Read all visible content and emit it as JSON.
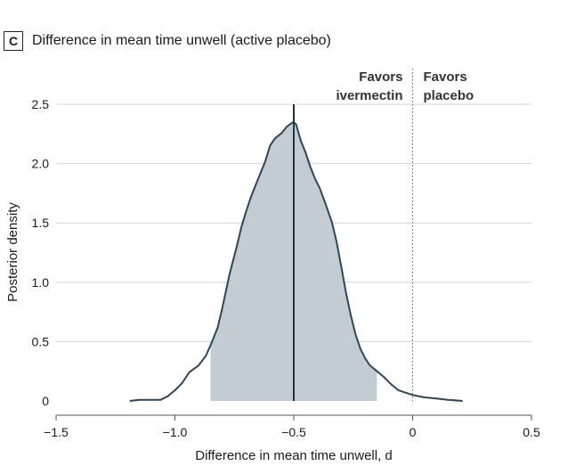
{
  "panel": {
    "letter": "C",
    "title": "Difference in mean time unwell (active placebo)"
  },
  "chart_data": {
    "type": "area",
    "xlabel": "Difference in mean time unwell, d",
    "ylabel": "Posterior density",
    "xlim": [
      -1.5,
      0.5
    ],
    "ylim": [
      0,
      2.5
    ],
    "x_ticks": [
      -1.5,
      -1.0,
      -0.5,
      0,
      0.5
    ],
    "x_tick_labels": [
      "−1.5",
      "−1.0",
      "−0.5",
      "0",
      "0.5"
    ],
    "y_ticks": [
      0,
      0.5,
      1.0,
      1.5,
      2.0,
      2.5
    ],
    "y_tick_labels": [
      "0",
      "0.5",
      "1.0",
      "1.5",
      "2.0",
      "2.5"
    ],
    "grid": "horizontal",
    "shaded_interval": [
      -0.85,
      -0.15
    ],
    "point_estimate": -0.5,
    "reference_line": 0,
    "annotations": {
      "left": [
        "Favors",
        "ivermectin"
      ],
      "right": [
        "Favors",
        "placebo"
      ]
    },
    "density": {
      "x": [
        -1.19,
        -1.15,
        -1.1,
        -1.06,
        -1.03,
        -1.0,
        -0.97,
        -0.94,
        -0.9,
        -0.87,
        -0.85,
        -0.82,
        -0.8,
        -0.77,
        -0.74,
        -0.72,
        -0.7,
        -0.68,
        -0.65,
        -0.62,
        -0.6,
        -0.58,
        -0.55,
        -0.53,
        -0.51,
        -0.5,
        -0.49,
        -0.48,
        -0.47,
        -0.45,
        -0.43,
        -0.41,
        -0.39,
        -0.37,
        -0.34,
        -0.32,
        -0.3,
        -0.28,
        -0.26,
        -0.24,
        -0.22,
        -0.2,
        -0.18,
        -0.15,
        -0.12,
        -0.09,
        -0.06,
        -0.03,
        0.0,
        0.05,
        0.1,
        0.15,
        0.21
      ],
      "y": [
        0.0,
        0.01,
        0.01,
        0.01,
        0.04,
        0.09,
        0.15,
        0.24,
        0.3,
        0.38,
        0.47,
        0.62,
        0.79,
        1.07,
        1.3,
        1.47,
        1.6,
        1.72,
        1.87,
        2.02,
        2.15,
        2.21,
        2.26,
        2.31,
        2.34,
        2.35,
        2.33,
        2.26,
        2.19,
        2.09,
        1.97,
        1.87,
        1.79,
        1.68,
        1.51,
        1.34,
        1.13,
        0.91,
        0.72,
        0.56,
        0.44,
        0.36,
        0.3,
        0.25,
        0.2,
        0.14,
        0.09,
        0.07,
        0.05,
        0.03,
        0.02,
        0.01,
        0.0
      ]
    },
    "colors": {
      "fill": "#c3ccd3",
      "curve": "#2f4656",
      "estimate_line": "#22323e",
      "grid": "#d4d4d4",
      "axis": "#555555",
      "reference": "#666666"
    }
  }
}
